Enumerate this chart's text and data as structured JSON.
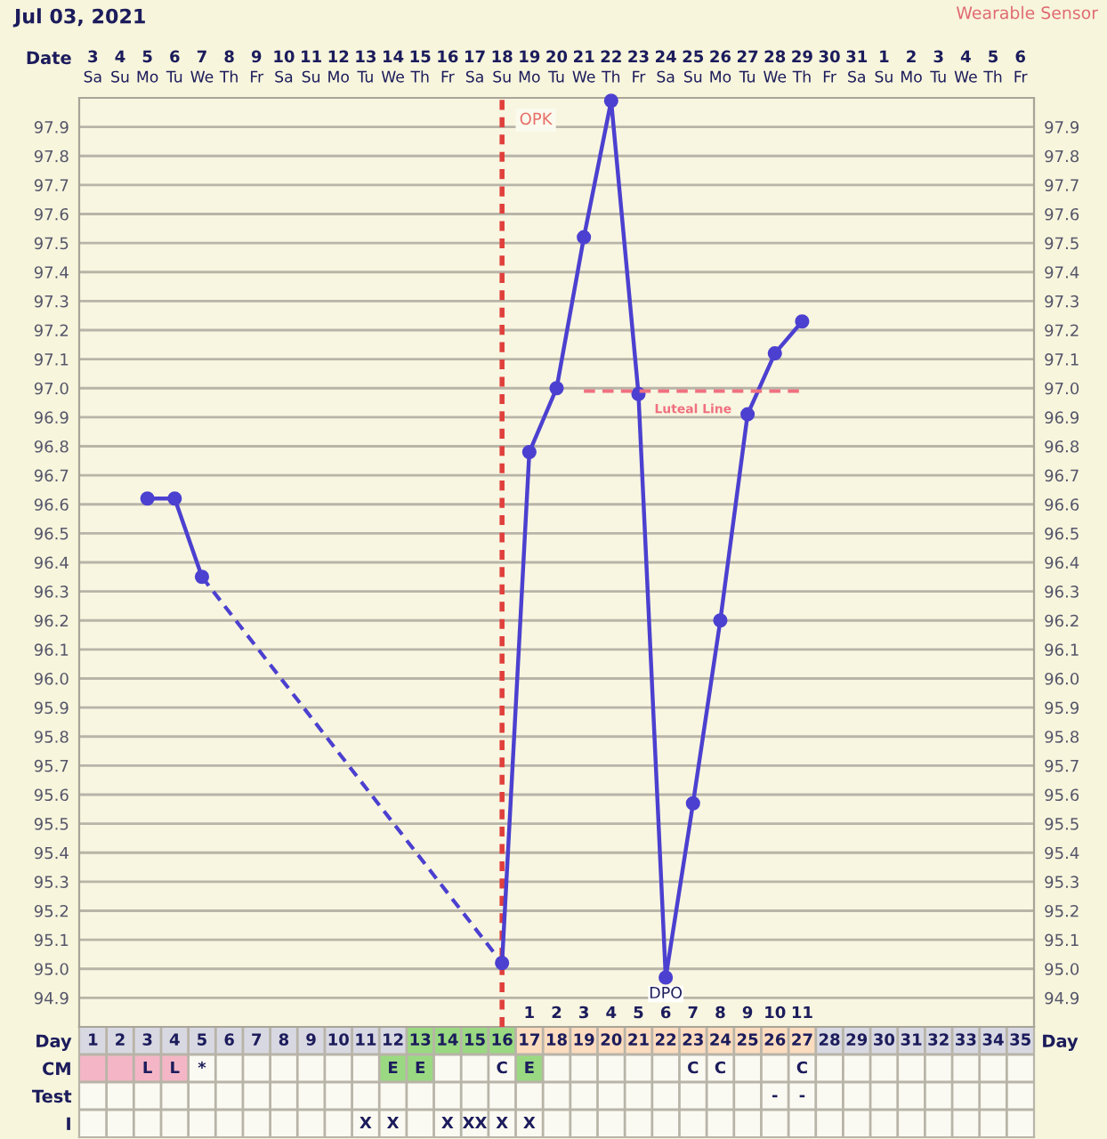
{
  "chart_data": [
    {
      "type": "heatmap",
      "categories": [
        "Sa",
        "Su",
        "Mo",
        "Tu",
        "We",
        "Th",
        "Fr",
        "Sa",
        "Su",
        "Mo",
        "Tu",
        "We",
        "Th",
        "Fr",
        "Sa",
        "Su",
        "Mo",
        "Tu",
        "We",
        "Th",
        "Fr",
        "Sa",
        "Su",
        "Mo",
        "Tu",
        "We",
        "Th",
        "Fr",
        "Sa",
        "Su",
        "Mo",
        "Tu",
        "We",
        "Th",
        "Fr"
      ],
      "y_categories": [
        "Date"
      ],
      "cells": [
        [
          null,
          null,
          null,
          null,
          null,
          null,
          null,
          null,
          null,
          null,
          null,
          null,
          null,
          null,
          null,
          null,
          null,
          null,
          null,
          null,
          null,
          null,
          null,
          null,
          null,
          null,
          null,
          null,
          null,
          null,
          null,
          null,
          null,
          null,
          null
        ]
      ],
      "cell_labels": [
        [
          "3",
          "4",
          "5",
          "6",
          "7",
          "8",
          "9",
          "10",
          "11",
          "12",
          "13",
          "14",
          "15",
          "16",
          "17",
          "18",
          "19",
          "20",
          "21",
          "22",
          "23",
          "24",
          "25",
          "26",
          "27",
          "28",
          "29",
          "30",
          "31",
          "1",
          "2",
          "3",
          "4",
          "5",
          "6"
        ]
      ]
    },
    {
      "type": "line",
      "title": "Jul 03, 2021",
      "annotations": [
        "Wearable Sensor"
      ],
      "xlim": [
        0.5,
        35.5
      ],
      "xticks": [
        1,
        2,
        3,
        4,
        5,
        6,
        7,
        8,
        9,
        10,
        11,
        12,
        13,
        14,
        15,
        16,
        17,
        18,
        19,
        20,
        21,
        22,
        23,
        24,
        25,
        26,
        27,
        28,
        29,
        30,
        31,
        32,
        33,
        34,
        35
      ],
      "x2label": "DPO",
      "x2lim": [
        -15.5,
        19.5
      ],
      "x2ticks": [
        1,
        2,
        3,
        4,
        5,
        6,
        7,
        8,
        9,
        10,
        11
      ],
      "ylim": [
        94.8,
        98.0
      ],
      "yticks": [
        94.9,
        {
          "value": 95,
          "label": "95.0"
        },
        95.1,
        95.2,
        95.3,
        95.4,
        95.5,
        95.6,
        95.7,
        95.8,
        95.9,
        {
          "value": 96,
          "label": "96.0"
        },
        96.1,
        96.2,
        96.3,
        96.4,
        96.5,
        96.6,
        96.7,
        96.8,
        96.9,
        {
          "value": 97,
          "label": "97.0"
        },
        97.1,
        97.2,
        97.3,
        97.4,
        97.5,
        97.6,
        97.7,
        97.8,
        97.9
      ],
      "y2lim": [
        94.8,
        98.0
      ],
      "y2ticks": [
        94.9,
        {
          "value": 95,
          "label": "95.0"
        },
        95.1,
        95.2,
        95.3,
        95.4,
        95.5,
        95.6,
        95.7,
        95.8,
        95.9,
        {
          "value": 96,
          "label": "96.0"
        },
        96.1,
        96.2,
        96.3,
        96.4,
        96.5,
        96.6,
        96.7,
        96.8,
        96.9,
        {
          "value": 97,
          "label": "97.0"
        },
        97.1,
        97.2,
        97.3,
        97.4,
        97.5,
        97.6,
        97.7,
        97.8,
        97.9
      ],
      "grid": true,
      "series": [
        {
          "color": "#4c40d0",
          "marker": "circle",
          "line_style": "solid",
          "x": [
            3,
            4,
            5
          ],
          "values": [
            96.62,
            96.62,
            96.35
          ]
        },
        {
          "color": "#4c40d0",
          "line_style": "dashed",
          "x": [
            5,
            16
          ],
          "values": [
            96.35,
            95.02
          ]
        },
        {
          "color": "#4c40d0",
          "marker": "circle",
          "line_style": "solid",
          "x": [
            16,
            17,
            18,
            19,
            20,
            21,
            22,
            23,
            24,
            25,
            26,
            27
          ],
          "values": [
            95.02,
            96.78,
            97.0,
            97.52,
            97.99,
            96.98,
            94.97,
            95.57,
            96.2,
            96.91,
            97.12,
            97.23
          ]
        },
        {
          "name": "Luteal Line",
          "color": "#f07080",
          "marker": "none",
          "line_style": "dashed",
          "x": [
            19,
            27
          ],
          "values": [
            96.99,
            96.99
          ]
        }
      ],
      "ref_lines": [
        {
          "axis": "x",
          "value": 16,
          "label": "OPK",
          "color": "#e0403c",
          "line_style": "dashed"
        }
      ]
    },
    {
      "type": "heatmap",
      "categories": [
        null,
        null,
        null,
        null,
        null,
        null,
        null,
        null,
        null,
        null,
        null,
        null,
        null,
        null,
        null,
        null,
        null,
        null,
        null,
        null,
        null,
        null,
        null,
        null,
        null,
        null,
        null,
        null,
        null,
        null,
        null,
        null,
        null,
        null,
        null
      ],
      "y_categories": [
        "Day",
        "CM",
        "Test",
        "I"
      ],
      "y2_categories": [
        "Day",
        null,
        null,
        null
      ],
      "cells": [
        [
          null,
          null,
          null,
          null,
          null,
          null,
          null,
          null,
          null,
          null,
          null,
          null,
          null,
          null,
          null,
          null,
          null,
          null,
          null,
          null,
          null,
          null,
          null,
          null,
          null,
          null,
          null,
          null,
          null,
          null,
          null,
          null,
          null,
          null,
          null
        ],
        [
          null,
          null,
          null,
          null,
          null,
          null,
          null,
          null,
          null,
          null,
          null,
          null,
          null,
          null,
          null,
          null,
          null,
          null,
          null,
          null,
          null,
          null,
          null,
          null,
          null,
          null,
          null,
          null,
          null,
          null,
          null,
          null,
          null,
          null,
          null
        ],
        [
          null,
          null,
          null,
          null,
          null,
          null,
          null,
          null,
          null,
          null,
          null,
          null,
          null,
          null,
          null,
          null,
          null,
          null,
          null,
          null,
          null,
          null,
          null,
          null,
          null,
          null,
          null,
          null,
          null,
          null,
          null,
          null,
          null,
          null,
          null
        ],
        [
          null,
          null,
          null,
          null,
          null,
          null,
          null,
          null,
          null,
          null,
          null,
          null,
          null,
          null,
          null,
          null,
          null,
          null,
          null,
          null,
          null,
          null,
          null,
          null,
          null,
          null,
          null,
          null,
          null,
          null,
          null,
          null,
          null,
          null,
          null
        ]
      ],
      "cell_labels": [
        [
          null,
          null,
          null,
          null,
          null,
          null,
          null,
          null,
          null,
          null,
          null,
          null,
          null,
          null,
          null,
          null,
          null,
          null,
          null,
          null,
          null,
          null,
          null,
          null,
          null,
          null,
          null,
          null,
          null,
          null,
          null,
          null,
          null,
          null,
          null
        ],
        [
          null,
          null,
          "L",
          "L",
          "*",
          null,
          null,
          null,
          null,
          null,
          null,
          "E",
          "E",
          null,
          null,
          "C",
          "E",
          null,
          null,
          null,
          null,
          null,
          "C",
          "C",
          null,
          null,
          "C",
          null,
          null,
          null,
          null,
          null,
          null,
          null,
          null
        ],
        [
          null,
          null,
          null,
          null,
          null,
          null,
          null,
          null,
          null,
          null,
          null,
          null,
          null,
          null,
          null,
          null,
          null,
          null,
          null,
          null,
          null,
          null,
          null,
          null,
          null,
          "-",
          "-",
          null,
          null,
          null,
          null,
          null,
          null,
          null,
          null
        ],
        [
          null,
          null,
          null,
          null,
          null,
          null,
          null,
          null,
          null,
          null,
          "X",
          "X",
          null,
          "X",
          "XX",
          "X",
          "X",
          null,
          null,
          null,
          null,
          null,
          null,
          null,
          null,
          null,
          null,
          null,
          null,
          null,
          null,
          null,
          null,
          null,
          null
        ]
      ],
      "colors": [
        [
          "#d8d8e2",
          "#d8d8e2",
          "#d8d8e2",
          "#d8d8e2",
          "#d8d8e2",
          "#d8d8e2",
          "#d8d8e2",
          "#d8d8e2",
          "#d8d8e2",
          "#d8d8e2",
          "#d8d8e2",
          "#d8d8e2",
          "#9ad982",
          "#9ad982",
          "#9ad982",
          "#9ad982",
          "#fcdcbe",
          "#fcdcbe",
          "#fcdcbe",
          "#fcdcbe",
          "#fcdcbe",
          "#fcdcbe",
          "#fcdcbe",
          "#fcdcbe",
          "#fcdcbe",
          "#fcdcbe",
          "#fcdcbe",
          "#d8d8e2",
          "#d8d8e2",
          "#d8d8e2",
          "#d8d8e2",
          "#d8d8e2",
          "#d8d8e2",
          "#d8d8e2",
          "#d8d8e2"
        ],
        [
          "#f4b6c6",
          "#f4b6c6",
          "#f4b6c6",
          "#f4b6c6",
          null,
          null,
          null,
          null,
          null,
          null,
          null,
          "#9ad982",
          "#9ad982",
          null,
          null,
          null,
          "#9ad982",
          null,
          null,
          null,
          null,
          null,
          null,
          null,
          null,
          null,
          null,
          null,
          null,
          null,
          null,
          null,
          null,
          null,
          null
        ],
        [
          null,
          null,
          null,
          null,
          null,
          null,
          null,
          null,
          null,
          null,
          null,
          null,
          null,
          null,
          null,
          null,
          null,
          null,
          null,
          null,
          null,
          null,
          null,
          null,
          null,
          null,
          null,
          null,
          null,
          null,
          null,
          null,
          null,
          null,
          null
        ],
        [
          null,
          null,
          null,
          null,
          null,
          null,
          null,
          null,
          null,
          null,
          null,
          null,
          null,
          null,
          null,
          null,
          null,
          null,
          null,
          null,
          null,
          null,
          null,
          null,
          null,
          null,
          null,
          null,
          null,
          null,
          null,
          null,
          null,
          null,
          null
        ]
      ]
    }
  ]
}
